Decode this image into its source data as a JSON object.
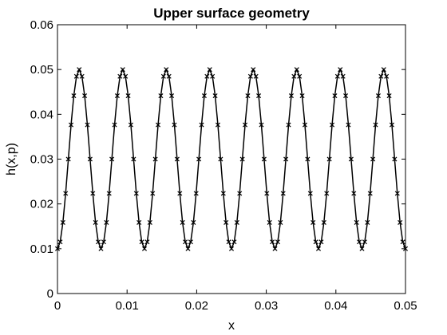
{
  "chart_data": {
    "type": "line",
    "title": "Upper surface geometry",
    "xlabel": "x",
    "ylabel": "h(x,p)",
    "xlim": [
      0,
      0.05
    ],
    "ylim": [
      0,
      0.06
    ],
    "xticks": [
      "0",
      "0.01",
      "0.02",
      "0.03",
      "0.04",
      "0.05"
    ],
    "yticks": [
      "0",
      "0.01",
      "0.02",
      "0.03",
      "0.04",
      "0.05",
      "0.06"
    ],
    "grid": false,
    "legend": "none",
    "series": [
      {
        "style": "solid line with x markers",
        "color": "#000000",
        "function": "h(x) = 0.03 - 0.02 * cos(2*pi*8*x/0.05)",
        "x_start": 0,
        "x_end": 0.05,
        "sample_count": 129,
        "min": 0.01,
        "max": 0.05,
        "periods": 8
      }
    ]
  }
}
